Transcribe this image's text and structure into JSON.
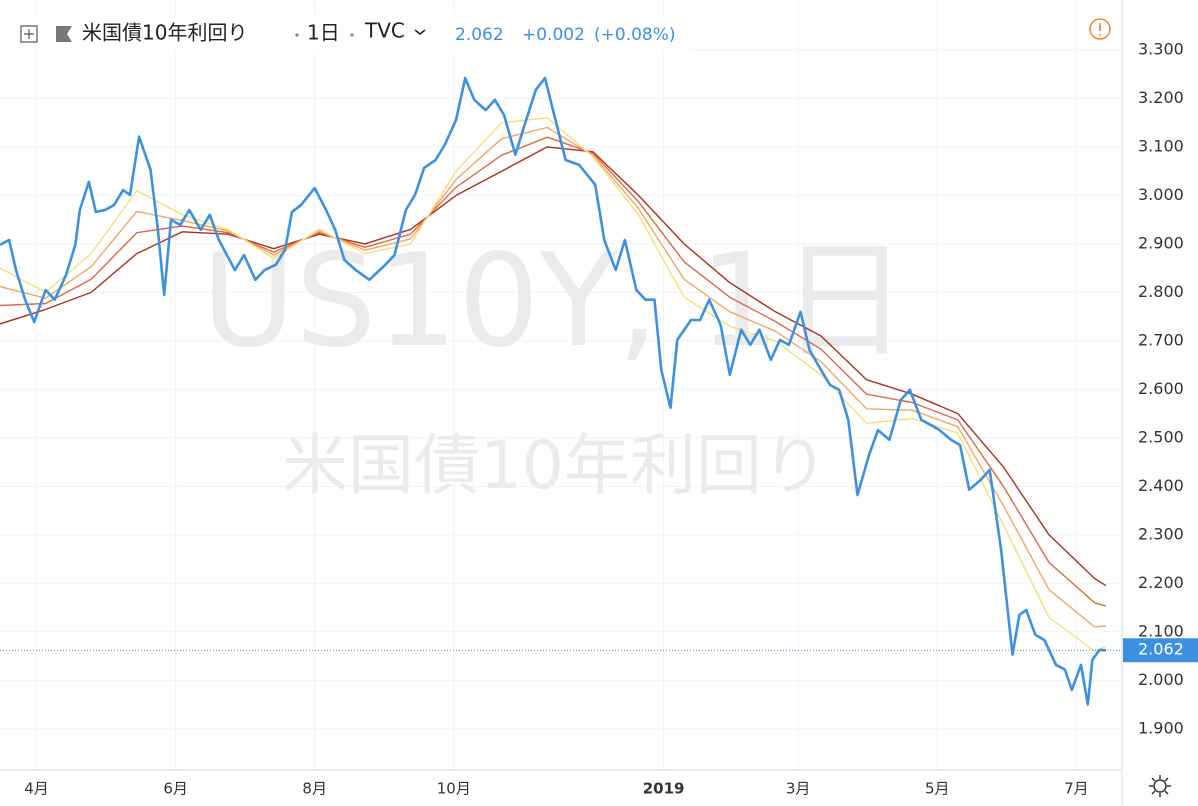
{
  "chart_data": {
    "type": "line",
    "title": "米国債10年利回り",
    "interval": "1日",
    "source": "TVC",
    "watermark": "US10Y, 1日",
    "last_price": 2.062,
    "change": {
      "value": 0.002,
      "label": "+0.002"
    },
    "change_pct": {
      "value": 0.08,
      "label": "(+0.08%)"
    },
    "xlim": [
      0,
      492
    ],
    "xticks": [
      {
        "value": 16,
        "label": "4月"
      },
      {
        "value": 77,
        "label": "6月"
      },
      {
        "value": 138,
        "label": "8月"
      },
      {
        "value": 199,
        "label": "10月"
      },
      {
        "value": 291,
        "label": "2019"
      },
      {
        "value": 350,
        "label": "3月"
      },
      {
        "value": 411,
        "label": "5月"
      },
      {
        "value": 472,
        "label": "7月"
      }
    ],
    "ylim": [
      1.815,
      3.403
    ],
    "yticks": [
      {
        "value": 1.9,
        "label": "1.900"
      },
      {
        "value": 2.0,
        "label": "2.000"
      },
      {
        "value": 2.1,
        "label": "2.100"
      },
      {
        "value": 2.2,
        "label": "2.200"
      },
      {
        "value": 2.3,
        "label": "2.300"
      },
      {
        "value": 2.4,
        "label": "2.400"
      },
      {
        "value": 2.5,
        "label": "2.500"
      },
      {
        "value": 2.6,
        "label": "2.600"
      },
      {
        "value": 2.7,
        "label": "2.700"
      },
      {
        "value": 2.8,
        "label": "2.800"
      },
      {
        "value": 2.9,
        "label": "2.900"
      },
      {
        "value": 3.0,
        "label": "3.000"
      },
      {
        "value": 3.1,
        "label": "3.100"
      },
      {
        "value": 3.2,
        "label": "3.200"
      },
      {
        "value": 3.3,
        "label": "3.300"
      }
    ],
    "grid": true,
    "series": [
      {
        "color": "#a8321e",
        "x": [
          0,
          20,
          40,
          60,
          80,
          100,
          120,
          140,
          160,
          180,
          200,
          220,
          240,
          260,
          280,
          300,
          320,
          340,
          360,
          380,
          400,
          420,
          440,
          460,
          480,
          485
        ],
        "values": [
          2.735,
          2.765,
          2.8,
          2.88,
          2.925,
          2.92,
          2.89,
          2.92,
          2.9,
          2.93,
          3.0,
          3.05,
          3.1,
          3.09,
          3.0,
          2.9,
          2.82,
          2.76,
          2.71,
          2.62,
          2.59,
          2.55,
          2.44,
          2.3,
          2.21,
          2.195
        ]
      },
      {
        "color": "#dc6a45",
        "x": [
          0,
          20,
          40,
          60,
          80,
          100,
          120,
          140,
          160,
          180,
          200,
          220,
          240,
          260,
          280,
          300,
          320,
          340,
          360,
          380,
          400,
          420,
          440,
          460,
          480,
          485
        ],
        "values": [
          2.773,
          2.777,
          2.827,
          2.923,
          2.937,
          2.923,
          2.883,
          2.923,
          2.893,
          2.92,
          3.017,
          3.083,
          3.12,
          3.087,
          2.987,
          2.863,
          2.79,
          2.74,
          2.683,
          2.59,
          2.573,
          2.537,
          2.4,
          2.243,
          2.16,
          2.153
        ]
      },
      {
        "color": "#f0a862",
        "x": [
          0,
          20,
          40,
          60,
          80,
          100,
          120,
          140,
          160,
          180,
          200,
          220,
          240,
          260,
          280,
          300,
          320,
          340,
          360,
          380,
          400,
          420,
          440,
          460,
          480,
          485
        ],
        "values": [
          2.812,
          2.788,
          2.853,
          2.967,
          2.948,
          2.927,
          2.877,
          2.927,
          2.887,
          2.91,
          3.033,
          3.117,
          3.14,
          3.083,
          2.973,
          2.827,
          2.76,
          2.72,
          2.657,
          2.56,
          2.557,
          2.523,
          2.36,
          2.187,
          2.11,
          2.112
        ]
      },
      {
        "color": "#f5df78",
        "x": [
          0,
          20,
          40,
          60,
          80,
          100,
          120,
          140,
          160,
          180,
          200,
          220,
          240,
          260,
          280,
          300,
          320,
          340,
          360,
          380,
          400,
          420,
          440,
          460,
          480,
          485
        ],
        "values": [
          2.85,
          2.8,
          2.88,
          3.01,
          2.96,
          2.93,
          2.87,
          2.93,
          2.88,
          2.9,
          3.05,
          3.15,
          3.16,
          3.08,
          2.96,
          2.79,
          2.73,
          2.7,
          2.63,
          2.53,
          2.54,
          2.51,
          2.32,
          2.13,
          2.06,
          2.07
        ]
      },
      {
        "color": "#3d91e0",
        "x": [
          0,
          4,
          7,
          11,
          15,
          20,
          24,
          29,
          33,
          35,
          39,
          42,
          46,
          50,
          54,
          57,
          61,
          66,
          69,
          72,
          75,
          79,
          83,
          88,
          92,
          96,
          103,
          107,
          112,
          116,
          121,
          125,
          128,
          132,
          138,
          143,
          147,
          151,
          156,
          162,
          169,
          173,
          178,
          182,
          186,
          191,
          195,
          200,
          204,
          208,
          213,
          217,
          221,
          226,
          230,
          235,
          239,
          243,
          248,
          254,
          261,
          265,
          270,
          274,
          279,
          283,
          287,
          290,
          294,
          297,
          303,
          307,
          311,
          316,
          320,
          325,
          329,
          333,
          338,
          342,
          346,
          351,
          355,
          360,
          364,
          368,
          372,
          376,
          381,
          385,
          390,
          395,
          399,
          404,
          408,
          412,
          417,
          421,
          425,
          430,
          434,
          439,
          444,
          447,
          450,
          454,
          458,
          463,
          467,
          470,
          474,
          477,
          479,
          482,
          485
        ],
        "values": [
          2.898,
          2.908,
          2.846,
          2.785,
          2.739,
          2.805,
          2.785,
          2.836,
          2.898,
          2.97,
          3.028,
          2.966,
          2.97,
          2.98,
          3.011,
          3.001,
          3.121,
          3.053,
          2.939,
          2.795,
          2.95,
          2.939,
          2.97,
          2.929,
          2.96,
          2.908,
          2.846,
          2.877,
          2.826,
          2.846,
          2.857,
          2.888,
          2.966,
          2.98,
          3.015,
          2.97,
          2.929,
          2.867,
          2.846,
          2.826,
          2.857,
          2.877,
          2.97,
          3.001,
          3.057,
          3.073,
          3.104,
          3.156,
          3.242,
          3.197,
          3.176,
          3.197,
          3.166,
          3.084,
          3.145,
          3.218,
          3.242,
          3.166,
          3.073,
          3.063,
          3.022,
          2.908,
          2.846,
          2.908,
          2.805,
          2.785,
          2.785,
          2.64,
          2.562,
          2.702,
          2.743,
          2.743,
          2.785,
          2.733,
          2.63,
          2.723,
          2.692,
          2.723,
          2.661,
          2.702,
          2.692,
          2.76,
          2.681,
          2.64,
          2.609,
          2.599,
          2.537,
          2.382,
          2.464,
          2.516,
          2.496,
          2.578,
          2.599,
          2.537,
          2.527,
          2.516,
          2.496,
          2.485,
          2.393,
          2.413,
          2.434,
          2.269,
          2.053,
          2.135,
          2.145,
          2.094,
          2.083,
          2.032,
          2.022,
          1.98,
          2.032,
          1.95,
          2.042,
          2.062,
          2.062
        ]
      }
    ]
  }
}
